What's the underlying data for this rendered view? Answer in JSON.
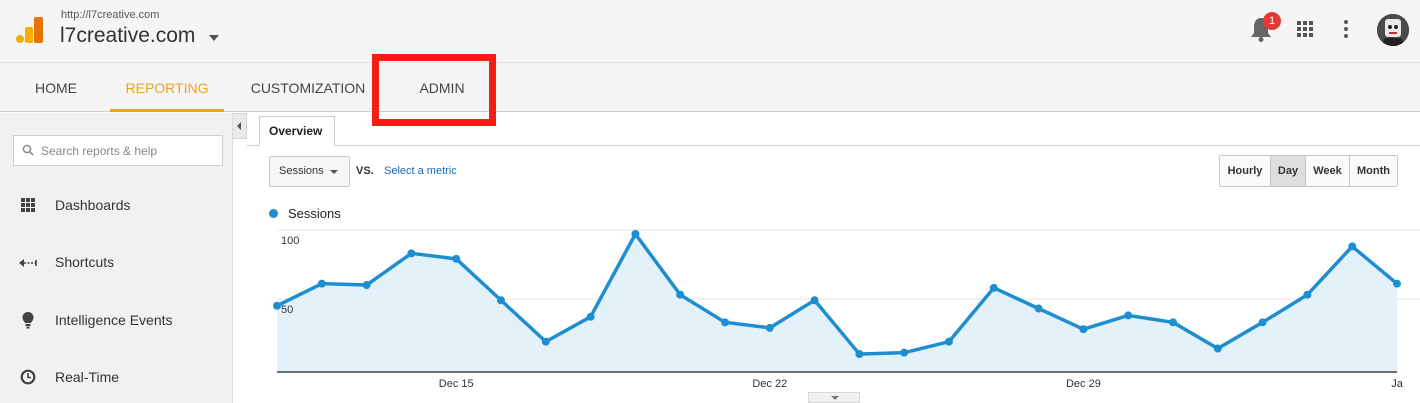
{
  "header": {
    "site_url": "http://l7creative.com",
    "site_name": "l7creative.com",
    "notification_count": "1",
    "logo_colors": [
      "#f9ab00",
      "#e37400"
    ],
    "icons": [
      "analytics-logo-icon",
      "caret-down-icon",
      "bell-icon",
      "apps-grid-icon",
      "more-vert-icon",
      "avatar"
    ]
  },
  "nav": {
    "tabs": [
      "HOME",
      "REPORTING",
      "CUSTOMIZATION",
      "ADMIN"
    ],
    "active": "REPORTING",
    "highlighted": "ADMIN",
    "accent_color": "#f4a022",
    "highlight_color": "#f41f14"
  },
  "sidebar": {
    "search_placeholder": "Search reports & help",
    "items": [
      {
        "label": "Dashboards",
        "icon": "grid-icon"
      },
      {
        "label": "Shortcuts",
        "icon": "shortcut-arrow-icon"
      },
      {
        "label": "Intelligence Events",
        "icon": "lightbulb-icon"
      },
      {
        "label": "Real-Time",
        "icon": "clock-icon"
      }
    ]
  },
  "main": {
    "tab": "Overview",
    "metric": "Sessions",
    "vs": "VS.",
    "select_metric": "Select a metric",
    "granularity": [
      "Hourly",
      "Day",
      "Week",
      "Month"
    ],
    "granularity_selected": "Day"
  },
  "chart_data": {
    "type": "area",
    "series": [
      {
        "name": "Sessions",
        "color": "#1f8ed0",
        "values": [
          48,
          64,
          63,
          86,
          82,
          52,
          22,
          40,
          100,
          56,
          36,
          32,
          52,
          13,
          14,
          22,
          61,
          46,
          31,
          41,
          36,
          17,
          36,
          56,
          91,
          64
        ]
      }
    ],
    "x_tick_labels": [
      "Dec 15",
      "Dec 22",
      "Dec 29",
      "Ja"
    ],
    "y_tick_labels": [
      "100",
      "50"
    ],
    "ylim": [
      0,
      100
    ],
    "grid": true
  }
}
